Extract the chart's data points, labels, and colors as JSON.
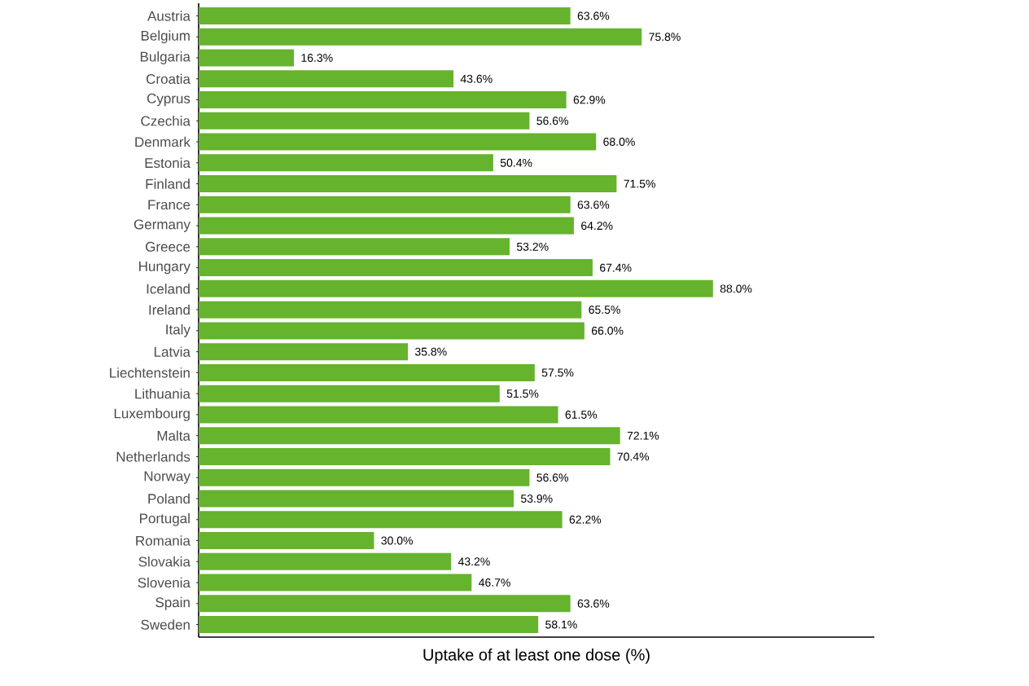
{
  "chart_data": {
    "type": "bar",
    "orientation": "horizontal",
    "xlabel": "Uptake of at least one dose (%)",
    "categories": [
      "Austria",
      "Belgium",
      "Bulgaria",
      "Croatia",
      "Cyprus",
      "Czechia",
      "Denmark",
      "Estonia",
      "Finland",
      "France",
      "Germany",
      "Greece",
      "Hungary",
      "Iceland",
      "Ireland",
      "Italy",
      "Latvia",
      "Liechtenstein",
      "Lithuania",
      "Luxembourg",
      "Malta",
      "Netherlands",
      "Norway",
      "Poland",
      "Portugal",
      "Romania",
      "Slovakia",
      "Slovenia",
      "Spain",
      "Sweden"
    ],
    "values": [
      63.6,
      75.8,
      16.3,
      43.6,
      62.9,
      56.6,
      68.0,
      50.4,
      71.5,
      63.6,
      64.2,
      53.2,
      67.4,
      88.0,
      65.5,
      66.0,
      35.8,
      57.5,
      51.5,
      61.5,
      72.1,
      70.4,
      56.6,
      53.9,
      62.2,
      30.0,
      43.2,
      46.7,
      63.6,
      58.1
    ],
    "value_labels": [
      "63.6%",
      "75.8%",
      "16.3%",
      "43.6%",
      "62.9%",
      "56.6%",
      "68.0%",
      "50.4%",
      "71.5%",
      "63.6%",
      "64.2%",
      "53.2%",
      "67.4%",
      "88.0%",
      "65.5%",
      "66.0%",
      "35.8%",
      "57.5%",
      "51.5%",
      "61.5%",
      "72.1%",
      "70.4%",
      "56.6%",
      "53.9%",
      "62.2%",
      "30.0%",
      "43.2%",
      "46.7%",
      "63.6%",
      "58.1%"
    ],
    "color": "#66b32e",
    "xlim": [
      0,
      115.6
    ]
  }
}
